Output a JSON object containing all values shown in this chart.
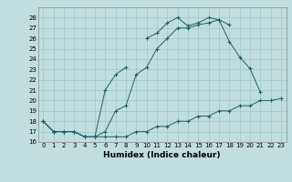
{
  "xlabel": "Humidex (Indice chaleur)",
  "background_color": "#c0dede",
  "grid_color": "#a0c8c8",
  "line_color": "#206060",
  "ylim": [
    16,
    29
  ],
  "xlim": [
    -0.5,
    23.5
  ],
  "yticks": [
    16,
    17,
    18,
    19,
    20,
    21,
    22,
    23,
    24,
    25,
    26,
    27,
    28
  ],
  "xticks": [
    0,
    1,
    2,
    3,
    4,
    5,
    6,
    7,
    8,
    9,
    10,
    11,
    12,
    13,
    14,
    15,
    16,
    17,
    18,
    19,
    20,
    21,
    22,
    23
  ],
  "curve1_x": [
    0,
    1,
    2,
    3,
    4,
    5,
    6,
    7,
    8,
    9,
    10,
    11,
    12,
    13,
    14,
    15,
    16,
    17,
    18,
    19,
    20,
    21,
    22,
    23
  ],
  "curve1_y": [
    18,
    17,
    17,
    17,
    16.5,
    16.5,
    16.5,
    16.5,
    16.5,
    17,
    17,
    17.5,
    17.5,
    18,
    18,
    18.5,
    18.5,
    19,
    19,
    19.5,
    19.5,
    20,
    20,
    20.2
  ],
  "curve2_x": [
    0,
    1,
    2,
    3,
    4,
    5,
    6,
    7,
    8,
    9,
    10,
    11,
    12,
    13,
    14,
    15,
    16,
    17,
    18,
    19,
    20,
    21
  ],
  "curve2_y": [
    18,
    17,
    17,
    17,
    16.5,
    16.5,
    17.0,
    19.0,
    19.5,
    22.5,
    23.2,
    25.0,
    26.0,
    27.0,
    27.0,
    27.3,
    27.5,
    27.8,
    25.7,
    24.2,
    23.1,
    20.8
  ],
  "curve3_x": [
    0,
    1,
    2,
    3,
    4,
    5,
    6,
    7,
    8,
    9,
    10,
    11,
    12,
    13,
    14,
    15,
    16,
    17,
    18,
    19,
    20,
    21
  ],
  "curve3_y": [
    18,
    17,
    17,
    17,
    16.5,
    16.5,
    21.0,
    22.5,
    23.2,
    null,
    26.0,
    26.5,
    27.5,
    28.0,
    27.2,
    27.5,
    28.0,
    27.8,
    27.3,
    null,
    null,
    null
  ]
}
